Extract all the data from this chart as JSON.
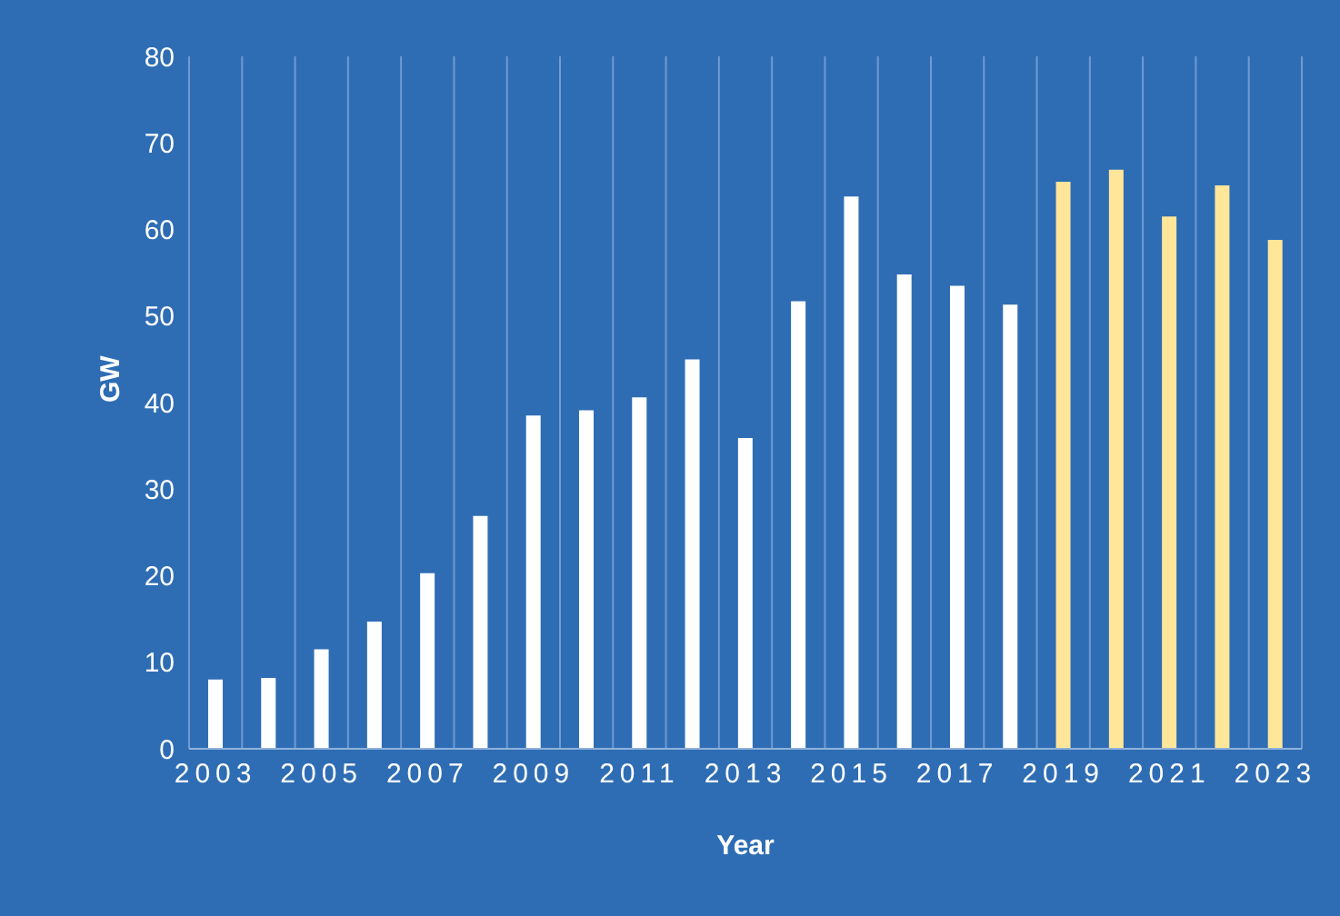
{
  "chart_data": {
    "type": "bar",
    "xlabel": "Year",
    "ylabel": "GW",
    "categories": [
      "2003",
      null,
      "2005",
      null,
      "2007",
      null,
      "2009",
      null,
      "2011",
      null,
      "2013",
      null,
      "2015",
      null,
      "2017",
      null,
      "2019",
      null,
      "2021",
      null,
      "2023"
    ],
    "values": [
      8.0,
      8.2,
      11.5,
      14.7,
      20.3,
      26.9,
      38.5,
      39.1,
      40.6,
      45.0,
      35.9,
      51.7,
      63.8,
      54.8,
      53.5,
      51.3,
      65.5,
      66.9,
      61.5,
      65.1,
      58.8
    ],
    "colors": [
      "#ffffff",
      "#ffffff",
      "#ffffff",
      "#ffffff",
      "#ffffff",
      "#ffffff",
      "#ffffff",
      "#ffffff",
      "#ffffff",
      "#ffffff",
      "#ffffff",
      "#ffffff",
      "#ffffff",
      "#ffffff",
      "#ffffff",
      "#ffffff",
      "#ffe699",
      "#ffe699",
      "#ffe699",
      "#ffe699",
      "#ffe699"
    ],
    "ylim": [
      0,
      80
    ],
    "yticks": [
      0,
      10,
      20,
      30,
      40,
      50,
      60,
      70,
      80
    ],
    "grid": "x"
  }
}
